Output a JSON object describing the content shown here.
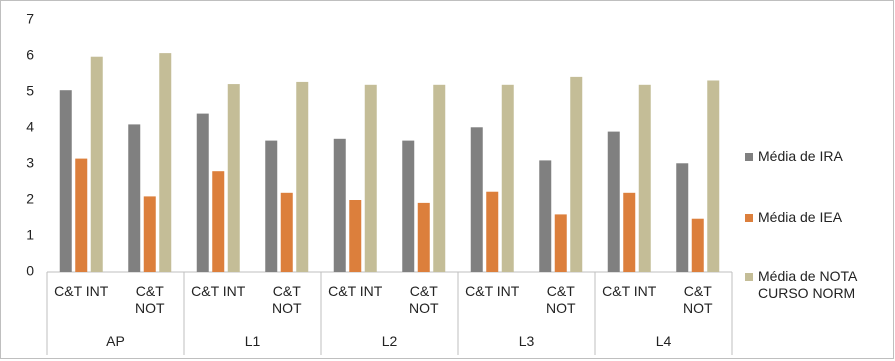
{
  "chart_data": {
    "type": "bar",
    "groups": [
      "AP",
      "L1",
      "L2",
      "L3",
      "L4"
    ],
    "categories": [
      "C&T INT",
      "C&T NOT",
      "C&T INT",
      "C&T NOT",
      "C&T INT",
      "C&T NOT",
      "C&T INT",
      "C&T NOT",
      "C&T INT",
      "C&T NOT"
    ],
    "series": [
      {
        "name": "Média de IRA",
        "color": "#808080",
        "values": [
          5.05,
          4.1,
          4.4,
          3.65,
          3.7,
          3.65,
          4.02,
          3.1,
          3.9,
          3.02
        ]
      },
      {
        "name": "Média de IEA",
        "color": "#dc7f3c",
        "values": [
          3.15,
          2.1,
          2.8,
          2.2,
          2.0,
          1.92,
          2.23,
          1.6,
          2.2,
          1.48
        ]
      },
      {
        "name": "Média de NOTA CURSO NORM",
        "color": "#c4bd97",
        "values": [
          5.98,
          6.08,
          5.22,
          5.28,
          5.2,
          5.2,
          5.2,
          5.42,
          5.2,
          5.32
        ]
      }
    ],
    "ylim": [
      0,
      7
    ],
    "yticks": [
      0,
      1,
      2,
      3,
      4,
      5,
      6,
      7
    ],
    "grid": false,
    "legend": "right"
  }
}
